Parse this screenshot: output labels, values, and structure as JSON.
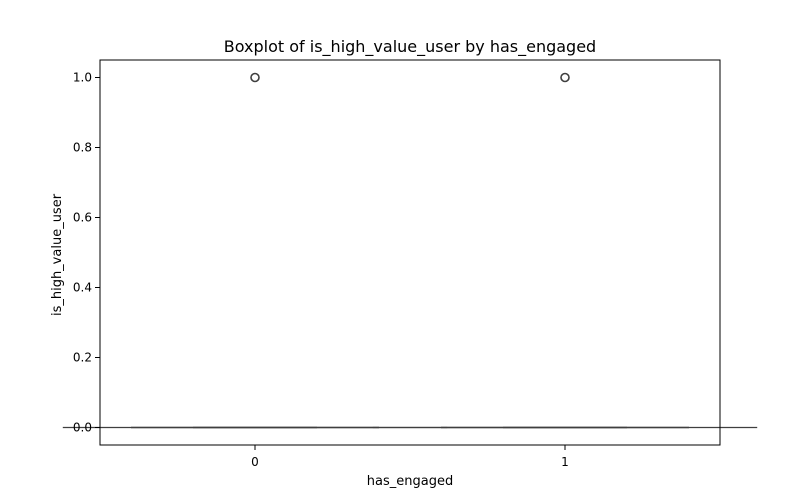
{
  "chart_data": {
    "type": "boxplot",
    "title": "Boxplot of is_high_value_user by has_engaged",
    "xlabel": "has_engaged",
    "ylabel": "is_high_value_user",
    "categories": [
      "0",
      "1"
    ],
    "boxes": [
      {
        "category": "0",
        "whisker_low": 0.0,
        "q1": 0.0,
        "median": 0.0,
        "q3": 0.0,
        "whisker_high": 0.0,
        "outliers": [
          1.0
        ]
      },
      {
        "category": "1",
        "whisker_low": 0.0,
        "q1": 0.0,
        "median": 0.0,
        "q3": 0.0,
        "whisker_high": 0.0,
        "outliers": [
          1.0
        ]
      }
    ],
    "ylim": [
      -0.05,
      1.05
    ],
    "yticks": [
      "0.0",
      "0.2",
      "0.4",
      "0.6",
      "0.8",
      "1.0"
    ],
    "ytick_values": [
      0.0,
      0.2,
      0.4,
      0.6,
      0.8,
      1.0
    ],
    "grid": false,
    "colors": {
      "box_edge": "#3f3f3f",
      "outlier": "#3f3f3f",
      "axis": "#000000"
    }
  }
}
